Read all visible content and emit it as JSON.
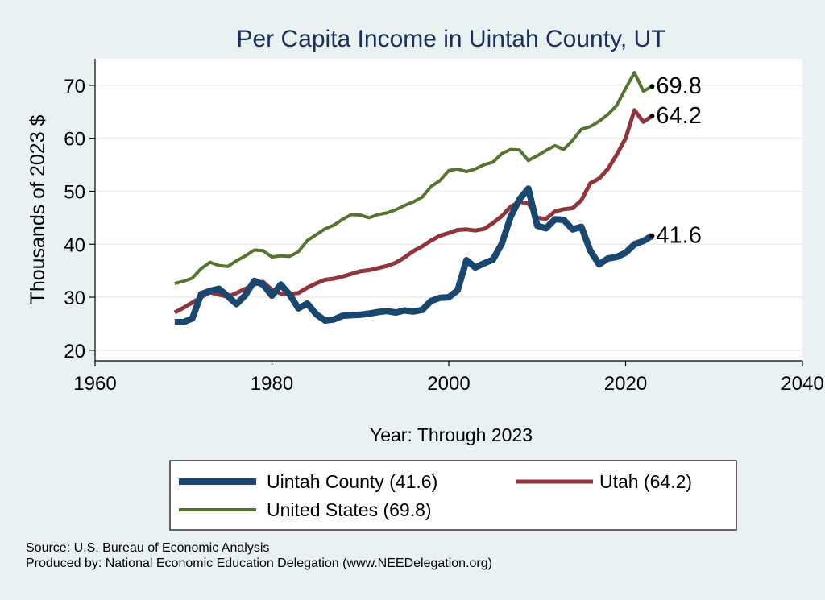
{
  "chart_data": {
    "type": "line",
    "title": "Per Capita Income in Uintah County, UT",
    "xlabel": "Year: Through 2023",
    "ylabel": "Thousands of 2023 $",
    "xlim": [
      1960,
      2040
    ],
    "ylim": [
      18,
      75
    ],
    "xticks": [
      1960,
      1980,
      2000,
      2020,
      2040
    ],
    "yticks": [
      20,
      30,
      40,
      50,
      60,
      70
    ],
    "grid": true,
    "legend_position": "bottom",
    "x": [
      1969,
      1970,
      1971,
      1972,
      1973,
      1974,
      1975,
      1976,
      1977,
      1978,
      1979,
      1980,
      1981,
      1982,
      1983,
      1984,
      1985,
      1986,
      1987,
      1988,
      1989,
      1990,
      1991,
      1992,
      1993,
      1994,
      1995,
      1996,
      1997,
      1998,
      1999,
      2000,
      2001,
      2002,
      2003,
      2004,
      2005,
      2006,
      2007,
      2008,
      2009,
      2010,
      2011,
      2012,
      2013,
      2014,
      2015,
      2016,
      2017,
      2018,
      2019,
      2020,
      2021,
      2022,
      2023
    ],
    "series": [
      {
        "name": "Uintah County",
        "legend": "Uintah County (41.6)",
        "end_label": "41.6",
        "color": "#1a476f",
        "width": 8,
        "values": [
          25.3,
          25.3,
          26.0,
          30.6,
          31.2,
          31.6,
          30.2,
          28.7,
          30.4,
          33.1,
          32.4,
          30.3,
          32.4,
          30.5,
          27.9,
          28.8,
          26.8,
          25.6,
          25.8,
          26.5,
          26.6,
          26.7,
          26.9,
          27.2,
          27.4,
          27.1,
          27.5,
          27.3,
          27.6,
          29.3,
          29.9,
          30.0,
          31.3,
          37.0,
          35.6,
          36.4,
          37.1,
          40.1,
          45.2,
          48.5,
          50.5,
          43.5,
          43.0,
          44.7,
          44.6,
          42.8,
          43.3,
          38.8,
          36.2,
          37.3,
          37.6,
          38.4,
          40.0,
          40.6,
          41.6
        ]
      },
      {
        "name": "Utah",
        "legend": "Utah (64.2)",
        "end_label": "64.2",
        "color": "#90353b",
        "width": 5,
        "values": [
          27.1,
          28.0,
          29.0,
          30.0,
          30.9,
          30.5,
          30.1,
          30.8,
          31.6,
          32.4,
          32.9,
          31.4,
          30.7,
          30.6,
          30.8,
          31.8,
          32.6,
          33.3,
          33.5,
          33.9,
          34.4,
          34.9,
          35.1,
          35.5,
          35.9,
          36.5,
          37.5,
          38.7,
          39.6,
          40.7,
          41.6,
          42.1,
          42.7,
          42.8,
          42.6,
          42.9,
          44.0,
          45.3,
          47.1,
          48.0,
          47.7,
          45.0,
          44.8,
          46.2,
          46.6,
          46.8,
          48.3,
          51.5,
          52.4,
          54.2,
          56.9,
          60.0,
          65.3,
          63.1,
          64.2
        ]
      },
      {
        "name": "United States",
        "legend": "United States (69.8)",
        "end_label": "69.8",
        "color": "#55752f",
        "width": 4,
        "values": [
          32.6,
          33.0,
          33.6,
          35.4,
          36.6,
          36.0,
          35.8,
          36.9,
          37.8,
          38.9,
          38.8,
          37.6,
          37.8,
          37.7,
          38.6,
          40.7,
          41.8,
          42.9,
          43.6,
          44.7,
          45.6,
          45.5,
          45.0,
          45.6,
          45.9,
          46.5,
          47.3,
          48.0,
          48.9,
          50.9,
          52.0,
          53.9,
          54.2,
          53.7,
          54.2,
          55.0,
          55.5,
          57.1,
          57.9,
          57.8,
          55.8,
          56.7,
          57.7,
          58.6,
          57.9,
          59.6,
          61.7,
          62.2,
          63.2,
          64.5,
          66.2,
          69.4,
          72.4,
          68.9,
          69.8
        ]
      }
    ],
    "legend_order": [
      "Uintah County",
      "Utah",
      "United States"
    ]
  },
  "footer": {
    "source": "Source: U.S. Bureau of Economic Analysis",
    "produced": "Produced by: National Economic Education Delegation (www.NEEDelegation.org)"
  }
}
